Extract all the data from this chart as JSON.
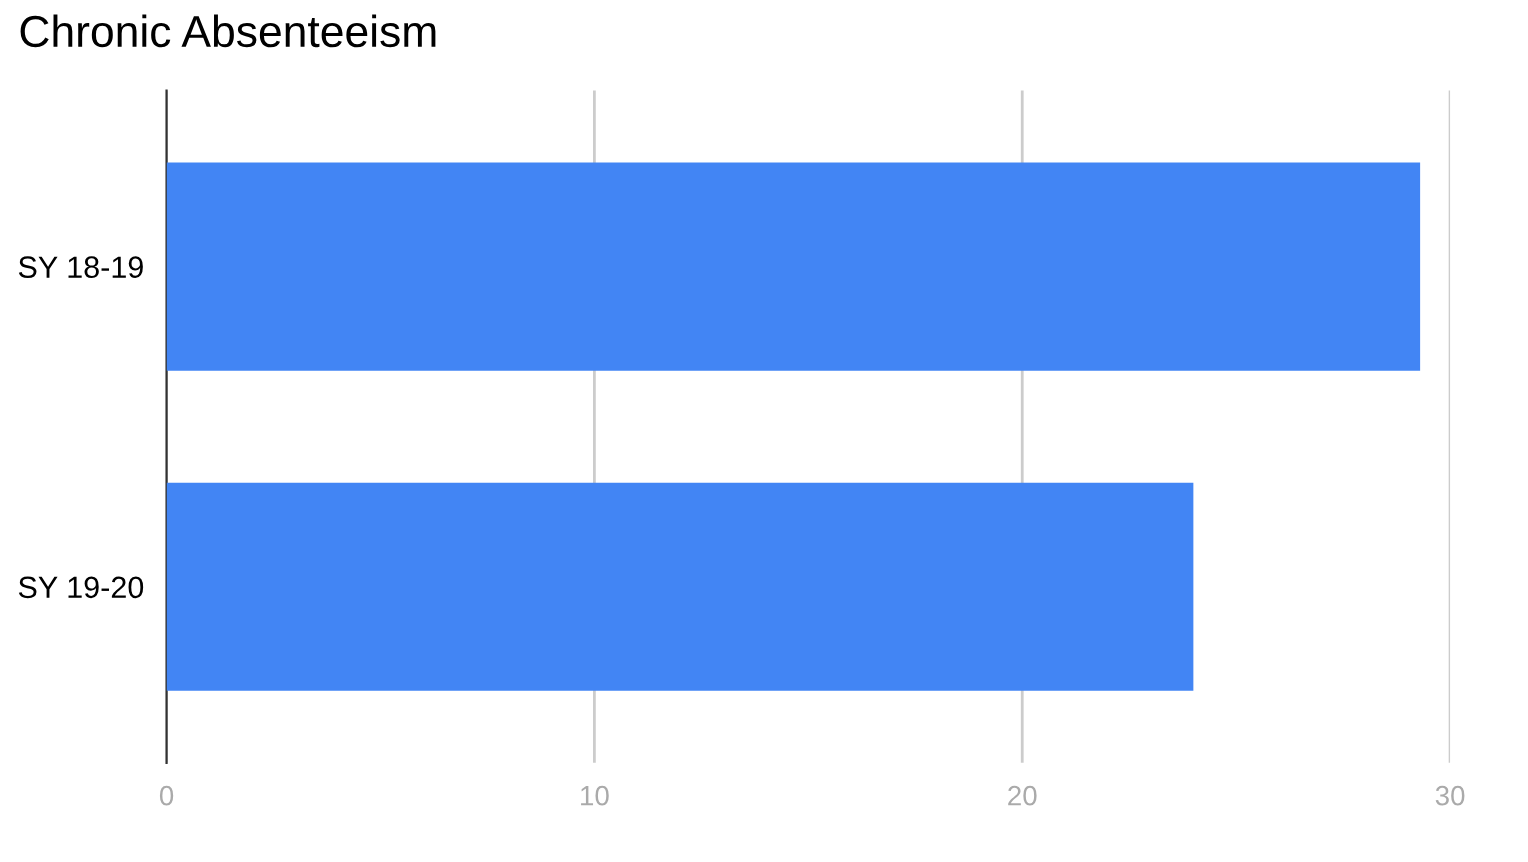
{
  "chart_data": {
    "type": "bar",
    "orientation": "horizontal",
    "title": "Chronic Absenteeism",
    "categories": [
      "SY 18-19",
      "SY 19-20"
    ],
    "series": [
      {
        "color": "#4285f4",
        "values": [
          29.3,
          24.0
        ]
      }
    ],
    "xlim": [
      0,
      30
    ],
    "xticks": [
      0,
      10,
      20,
      30
    ],
    "grid": "x"
  }
}
